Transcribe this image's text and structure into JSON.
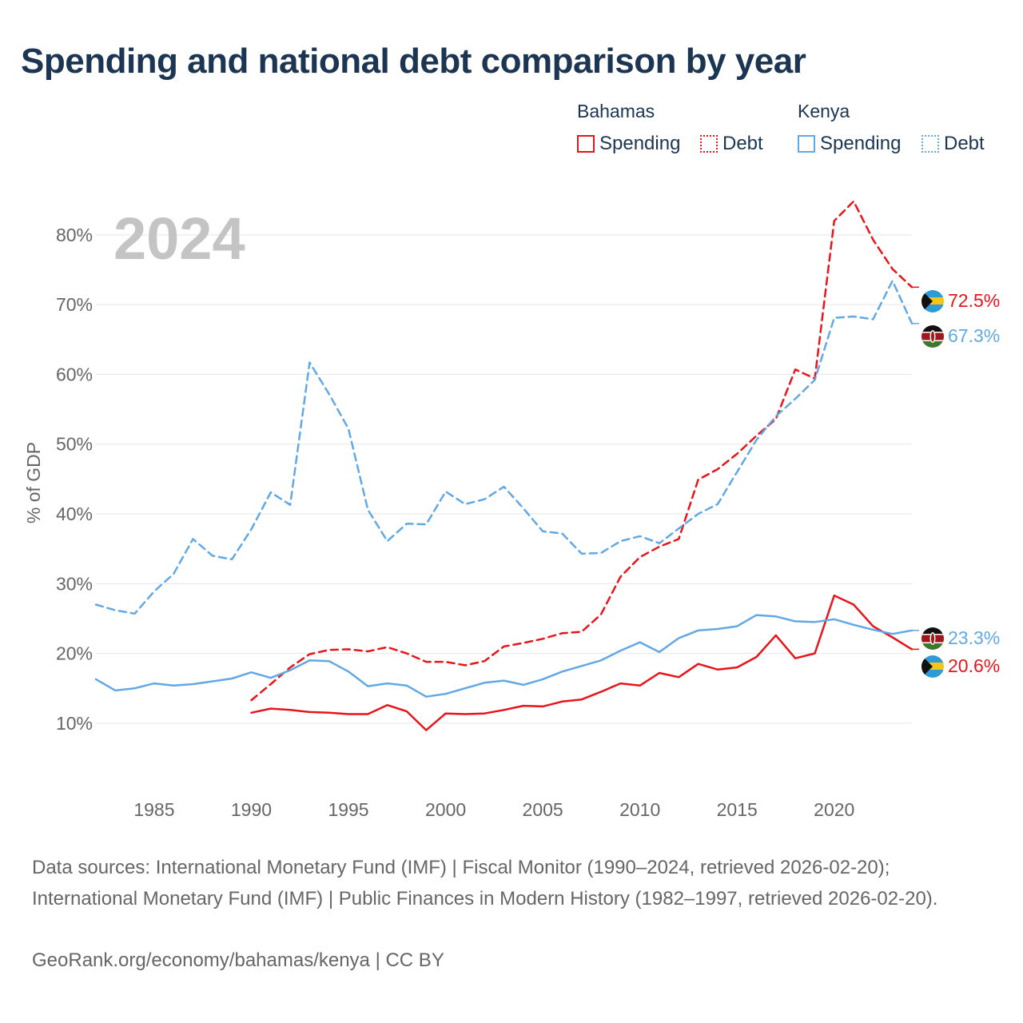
{
  "title": "Spending and national debt comparison by year",
  "legend": {
    "groups": [
      {
        "name": "Bahamas",
        "items": [
          {
            "label": "Spending",
            "color": "#e8141b",
            "style": "solid"
          },
          {
            "label": "Debt",
            "color": "#e8141b",
            "style": "dotted"
          }
        ]
      },
      {
        "name": "Kenya",
        "items": [
          {
            "label": "Spending",
            "color": "#62a8e5",
            "style": "solid"
          },
          {
            "label": "Debt",
            "color": "#62a8e5",
            "style": "dotted"
          }
        ]
      }
    ]
  },
  "chart_data": {
    "type": "line",
    "title": "Spending and national debt comparison by year",
    "year_watermark": "2024",
    "ylabel": "% of GDP",
    "xlabel": "",
    "xlim": [
      1982,
      2024
    ],
    "ylim": [
      3,
      88
    ],
    "x_ticks": [
      1985,
      1990,
      1995,
      2000,
      2005,
      2010,
      2015,
      2020
    ],
    "x_tick_labels": [
      "1985",
      "1990",
      "1995",
      "2000",
      "2005",
      "2010",
      "2015",
      "2020"
    ],
    "y_ticks": [
      10,
      20,
      30,
      40,
      50,
      60,
      70,
      80
    ],
    "y_tick_labels": [
      "10%",
      "20%",
      "30%",
      "40%",
      "50%",
      "60%",
      "70%",
      "80%"
    ],
    "grid": true,
    "series": [
      {
        "name": "Bahamas Spending",
        "country": "Bahamas",
        "metric": "Spending",
        "color": "#e8141b",
        "dash": "solid",
        "end_label": "20.6%",
        "x": [
          1990,
          1991,
          1992,
          1993,
          1994,
          1995,
          1996,
          1997,
          1998,
          1999,
          2000,
          2001,
          2002,
          2003,
          2004,
          2005,
          2006,
          2007,
          2008,
          2009,
          2010,
          2011,
          2012,
          2013,
          2014,
          2015,
          2016,
          2017,
          2018,
          2019,
          2020,
          2021,
          2022,
          2023,
          2024
        ],
        "values": [
          11.5,
          12.1,
          11.9,
          11.6,
          11.5,
          11.3,
          11.3,
          12.6,
          11.7,
          9.0,
          11.4,
          11.3,
          11.4,
          11.9,
          12.5,
          12.4,
          13.1,
          13.4,
          14.5,
          15.7,
          15.4,
          17.2,
          16.6,
          18.5,
          17.7,
          18.0,
          19.5,
          22.6,
          19.3,
          20.0,
          28.3,
          27.0,
          23.9,
          22.3,
          20.6
        ]
      },
      {
        "name": "Bahamas Debt",
        "country": "Bahamas",
        "metric": "Debt",
        "color": "#e8141b",
        "dash": "dashed",
        "end_label": "72.5%",
        "x": [
          1990,
          1991,
          1992,
          1993,
          1994,
          1995,
          1996,
          1997,
          1998,
          1999,
          2000,
          2001,
          2002,
          2003,
          2004,
          2005,
          2006,
          2007,
          2008,
          2009,
          2010,
          2011,
          2012,
          2013,
          2014,
          2015,
          2016,
          2017,
          2018,
          2019,
          2020,
          2021,
          2022,
          2023,
          2024
        ],
        "values": [
          13.3,
          15.6,
          18.0,
          19.9,
          20.5,
          20.6,
          20.3,
          20.9,
          20.0,
          18.8,
          18.8,
          18.3,
          18.9,
          21.0,
          21.5,
          22.1,
          22.9,
          23.1,
          25.6,
          31.0,
          33.8,
          35.3,
          36.4,
          44.9,
          46.4,
          48.6,
          51.2,
          53.6,
          60.7,
          59.4,
          82.0,
          84.8,
          79.3,
          75.1,
          72.5
        ]
      },
      {
        "name": "Kenya Spending",
        "country": "Kenya",
        "metric": "Spending",
        "color": "#62a8e5",
        "dash": "solid",
        "end_label": "23.3%",
        "x": [
          1982,
          1983,
          1984,
          1985,
          1986,
          1987,
          1988,
          1989,
          1990,
          1991,
          1992,
          1993,
          1994,
          1995,
          1996,
          1997,
          1998,
          1999,
          2000,
          2001,
          2002,
          2003,
          2004,
          2005,
          2006,
          2007,
          2008,
          2009,
          2010,
          2011,
          2012,
          2013,
          2014,
          2015,
          2016,
          2017,
          2018,
          2019,
          2020,
          2021,
          2022,
          2023,
          2024
        ],
        "values": [
          16.3,
          14.7,
          15.0,
          15.7,
          15.4,
          15.6,
          16.0,
          16.4,
          17.3,
          16.5,
          17.6,
          19.0,
          18.9,
          17.4,
          15.3,
          15.7,
          15.4,
          13.8,
          14.2,
          15.0,
          15.8,
          16.1,
          15.5,
          16.3,
          17.4,
          18.2,
          19.0,
          20.4,
          21.6,
          20.2,
          22.2,
          23.3,
          23.5,
          23.9,
          25.5,
          25.3,
          24.6,
          24.5,
          24.9,
          24.1,
          23.4,
          22.8,
          23.3
        ]
      },
      {
        "name": "Kenya Debt",
        "country": "Kenya",
        "metric": "Debt",
        "color": "#62a8e5",
        "dash": "dashed",
        "end_label": "67.3%",
        "x": [
          1982,
          1983,
          1984,
          1985,
          1986,
          1987,
          1988,
          1989,
          1990,
          1991,
          1992,
          1993,
          1994,
          1995,
          1996,
          1997,
          1998,
          1999,
          2000,
          2001,
          2002,
          2003,
          2004,
          2005,
          2006,
          2007,
          2008,
          2009,
          2010,
          2011,
          2012,
          2013,
          2014,
          2015,
          2016,
          2017,
          2018,
          2019,
          2020,
          2021,
          2022,
          2023,
          2024
        ],
        "values": [
          27.0,
          26.2,
          25.7,
          28.9,
          31.4,
          36.4,
          34.0,
          33.5,
          37.8,
          43.1,
          41.3,
          61.7,
          57.2,
          52.2,
          40.6,
          36.1,
          38.6,
          38.5,
          43.2,
          41.4,
          42.1,
          43.9,
          40.8,
          37.5,
          37.2,
          34.3,
          34.4,
          36.1,
          36.8,
          35.8,
          37.9,
          40.0,
          41.4,
          46.0,
          50.6,
          54.0,
          56.5,
          59.2,
          68.1,
          68.3,
          67.9,
          73.4,
          67.3
        ]
      }
    ]
  },
  "footer": {
    "sources": "Data sources: International Monetary Fund (IMF) | Fiscal Monitor (1990–2024, retrieved 2026-02-20); International Monetary Fund (IMF) | Public Finances in Modern History (1982–1997, retrieved 2026-02-20).",
    "credit": "GeoRank.org/economy/bahamas/kenya | CC BY"
  }
}
